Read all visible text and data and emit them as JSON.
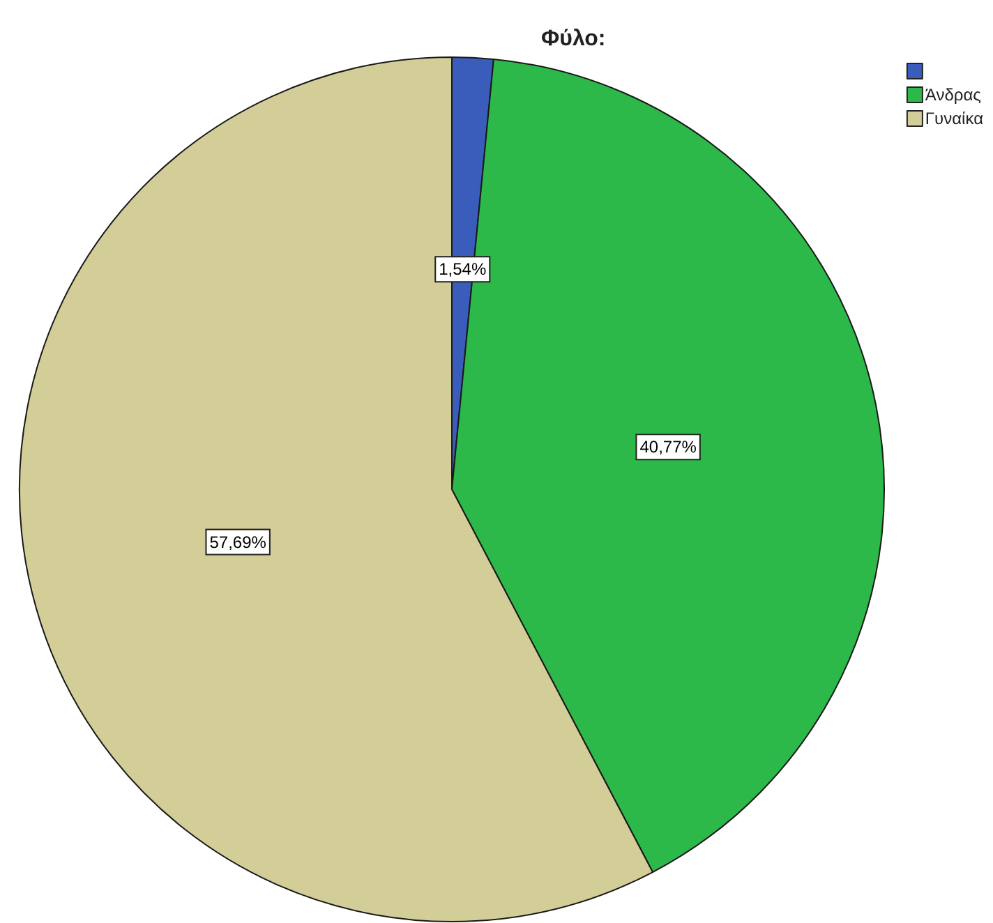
{
  "chart_data": {
    "type": "pie",
    "title": "Φύλο:",
    "categories": [
      null,
      "Άνδρας",
      "Γυναίκα"
    ],
    "values": [
      1.54,
      40.77,
      57.69
    ],
    "colors": [
      "#3a5cbb",
      "#2db84a",
      "#d3cd98"
    ],
    "value_labels": [
      "1,54%",
      "40,77%",
      "57,69%"
    ],
    "legend": "top right"
  }
}
